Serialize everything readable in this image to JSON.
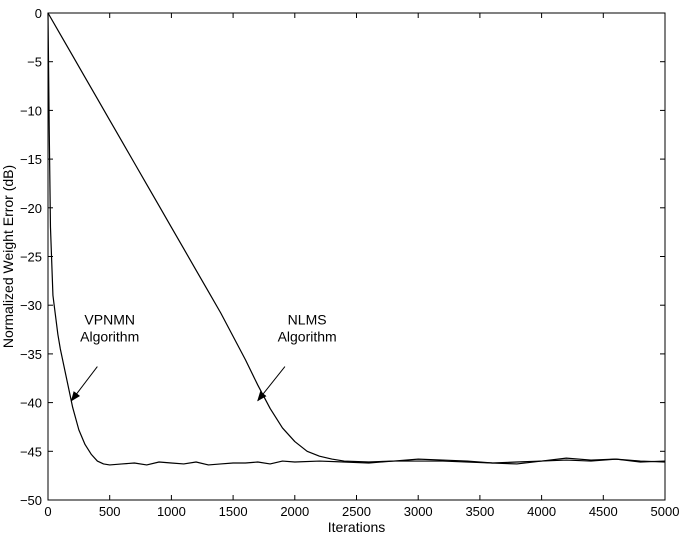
{
  "chart_data": {
    "type": "line",
    "xlabel": "Iterations",
    "ylabel": "Normalized Weight Error (dB)",
    "xlim": [
      0,
      5000
    ],
    "ylim": [
      -50,
      0
    ],
    "xticks": [
      0,
      500,
      1000,
      1500,
      2000,
      2500,
      3000,
      3500,
      4000,
      4500,
      5000
    ],
    "yticks": [
      0,
      -5,
      -10,
      -15,
      -20,
      -25,
      -30,
      -35,
      -40,
      -45,
      -50
    ],
    "grid": false,
    "legend": "none",
    "series": [
      {
        "name": "VPNMN Algorithm",
        "color": "#000000",
        "x": [
          0,
          10,
          20,
          40,
          60,
          80,
          100,
          150,
          200,
          250,
          300,
          350,
          400,
          450,
          500,
          600,
          700,
          800,
          900,
          1000,
          1100,
          1200,
          1300,
          1400,
          1500,
          1600,
          1700,
          1800,
          1900,
          2000,
          2200,
          2400,
          2600,
          2800,
          3000,
          3200,
          3400,
          3600,
          3800,
          4000,
          4200,
          4400,
          4600,
          4800,
          5000
        ],
        "y": [
          0,
          -12,
          -22,
          -29,
          -31,
          -33,
          -34.5,
          -37.5,
          -40.5,
          -42.8,
          -44.3,
          -45.3,
          -46.0,
          -46.3,
          -46.4,
          -46.3,
          -46.2,
          -46.4,
          -46.1,
          -46.2,
          -46.3,
          -46.1,
          -46.4,
          -46.3,
          -46.2,
          -46.2,
          -46.1,
          -46.3,
          -46.0,
          -46.1,
          -46.0,
          -46.1,
          -46.2,
          -46.0,
          -45.8,
          -45.9,
          -46.0,
          -46.2,
          -46.3,
          -46.0,
          -45.7,
          -45.9,
          -45.8,
          -46.1,
          -46.0
        ]
      },
      {
        "name": "NLMS Algorithm",
        "color": "#000000",
        "x": [
          0,
          100,
          200,
          300,
          400,
          500,
          600,
          700,
          800,
          900,
          1000,
          1100,
          1200,
          1300,
          1400,
          1500,
          1600,
          1700,
          1800,
          1900,
          2000,
          2100,
          2200,
          2300,
          2400,
          2600,
          2800,
          3000,
          3200,
          3400,
          3600,
          3800,
          4000,
          4200,
          4400,
          4600,
          4800,
          5000
        ],
        "y": [
          0,
          -2.2,
          -4.4,
          -6.6,
          -8.8,
          -11.0,
          -13.2,
          -15.4,
          -17.6,
          -19.8,
          -22.0,
          -24.2,
          -26.4,
          -28.6,
          -30.8,
          -33.2,
          -35.6,
          -38.2,
          -40.6,
          -42.6,
          -44.0,
          -45.0,
          -45.5,
          -45.8,
          -46.0,
          -46.1,
          -46.0,
          -46.0,
          -46.0,
          -46.1,
          -46.2,
          -46.1,
          -46.0,
          -45.9,
          -46.0,
          -45.8,
          -46.0,
          -46.1
        ]
      }
    ],
    "annotations": [
      {
        "lines": [
          "VPNMN",
          "Algorithm"
        ],
        "text_at": [
          500,
          -32
        ],
        "arrow_from": [
          400,
          -36.3
        ],
        "arrow_to": [
          190,
          -39.8
        ]
      },
      {
        "lines": [
          "NLMS",
          "Algorithm"
        ],
        "text_at": [
          2100,
          -32
        ],
        "arrow_from": [
          1920,
          -36.3
        ],
        "arrow_to": [
          1700,
          -39.8
        ]
      }
    ]
  }
}
